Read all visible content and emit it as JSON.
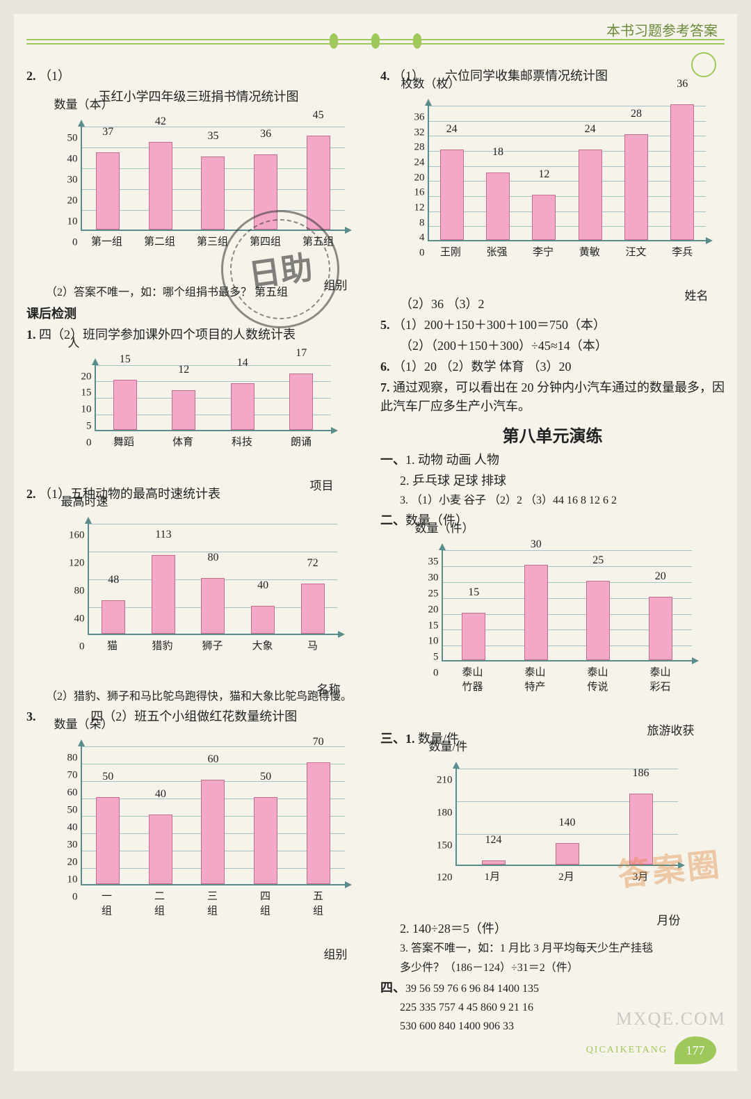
{
  "header": {
    "title": "本书习题参考答案"
  },
  "colors": {
    "bar": "#f4a8c8",
    "bar_border": "#c76c8f",
    "axis": "#5a8c8c",
    "grid": "#a0c4c4",
    "accent": "#9fc85a"
  },
  "left": {
    "q2": {
      "label": "2.",
      "sub1": "（1）",
      "title": "玉红小学四年级三班捐书情况统计图",
      "ylabel": "数量（本）",
      "xlabel": "组别",
      "ymax": 50,
      "ystep": 10,
      "cats": [
        "第一组",
        "第二组",
        "第三组",
        "第四组",
        "第五组"
      ],
      "vals": [
        37,
        42,
        35,
        36,
        45
      ],
      "sub2": "（2）答案不唯一，如：哪个组捐书最多？    第五组"
    },
    "khjc": "课后检测",
    "k1": {
      "label": "1.",
      "title": "四（2）班同学参加课外四个项目的人数统计表",
      "ylabel": "人",
      "xlabel": "项目",
      "ymax": 20,
      "ystep": 5,
      "cats": [
        "舞蹈",
        "体育",
        "科技",
        "朗诵"
      ],
      "vals": [
        15,
        12,
        14,
        17
      ]
    },
    "k2": {
      "label": "2.",
      "sub1": "（1）",
      "title": "五种动物的最高时速统计表",
      "ylabel": "最高时速",
      "xlabel": "名称",
      "ymax": 160,
      "ystep": 40,
      "cats": [
        "猫",
        "猎豹",
        "狮子",
        "大象",
        "马"
      ],
      "vals": [
        48,
        113,
        80,
        40,
        72
      ],
      "sub2": "（2）猎豹、狮子和马比鸵鸟跑得快，猫和大象比鸵鸟跑得慢。"
    },
    "k3": {
      "label": "3.",
      "title": "四（2）班五个小组做红花数量统计图",
      "ylabel": "数量（朵）",
      "xlabel": "组别",
      "ymax": 80,
      "ystep": 10,
      "cats": [
        "一\n组",
        "二\n组",
        "三\n组",
        "四\n组",
        "五\n组"
      ],
      "vals": [
        50,
        40,
        60,
        50,
        70
      ]
    }
  },
  "right": {
    "q4": {
      "label": "4.",
      "sub1": "（1）",
      "title": "六位同学收集邮票情况统计图",
      "ylabel": "枚数（枚）",
      "xlabel": "姓名",
      "ymax": 36,
      "ystep": 4,
      "ystart": 0,
      "cats": [
        "王刚",
        "张强",
        "李宁",
        "黄敏",
        "汪文",
        "李兵"
      ],
      "vals": [
        24,
        18,
        12,
        24,
        28,
        36
      ],
      "sub2": "（2）36    （3）2"
    },
    "q5": {
      "label": "5.",
      "l1": "（1）200＋150＋300＋100＝750（本）",
      "l2": "（2）（200＋150＋300）÷45≈14（本）"
    },
    "q6": {
      "label": "6.",
      "txt": "（1）20    （2）数学    体育    （3）20"
    },
    "q7": {
      "label": "7.",
      "txt": "通过观察，可以看出在 20 分钟内小汽车通过的数量最多，因此汽车厂应多生产小汽车。"
    },
    "unit8": "第八单元演练",
    "s1": {
      "label": "一、",
      "l1": "1. 动物    动画    人物",
      "l2": "2. 乒乓球    足球    排球",
      "l3": "3. （1）小麦  谷子  （2）2  （3）44  16  8  12  6  2"
    },
    "s2": {
      "label": "二、",
      "ylabel": "数量（件）",
      "xlabel": "旅游收获",
      "ymax": 35,
      "ystep": 5,
      "cats": [
        "泰山\n竹器",
        "泰山\n特产",
        "泰山\n传说",
        "泰山\n彩石"
      ],
      "vals": [
        15,
        30,
        25,
        20
      ]
    },
    "s3": {
      "label": "三、",
      "q1": "1.",
      "ylabel": "数量/件",
      "xlabel": "月份",
      "ymax": 210,
      "ystep": 30,
      "ystart": 120,
      "cats": [
        "1月",
        "2月",
        "3月"
      ],
      "vals": [
        124,
        140,
        186
      ],
      "q2": "2. 140÷28＝5（件）",
      "q3a": "3. 答案不唯一，如：1 月比 3 月平均每天少生产挂毯",
      "q3b": "    多少件？（186－124）÷31＝2（件）"
    },
    "s4": {
      "label": "四、",
      "r1": "39    56    59    76    6    96    84    1400    135",
      "r2": "225    335    757    4    45    860    9    21    16",
      "r3": "530    600    840    1400    906    33"
    }
  },
  "stamp": "日助",
  "watermark1": "答案圈",
  "watermark2": "MXQE.COM",
  "page_num": "177",
  "footer_txt": "QICAIKETANG"
}
